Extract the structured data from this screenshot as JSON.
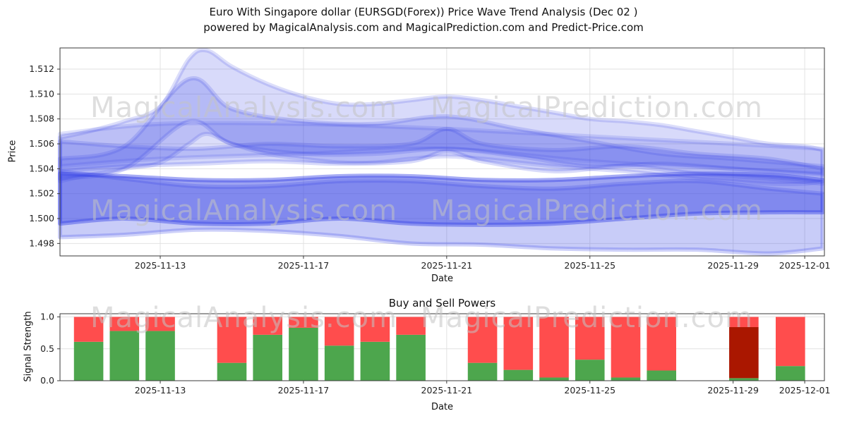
{
  "header": {
    "title_line1": "Euro With Singapore dollar (EURSGD(Forex)) Price Wave Trend Analysis (Dec 02 )",
    "title_line2": "powered by MagicalAnalysis.com and MagicalPrediction.com and Predict-Price.com"
  },
  "watermarks": {
    "left": "MagicalAnalysis.com",
    "right": "MagicalPrediction.com"
  },
  "colors": {
    "band": "#3b47e6",
    "green": "#4da64d",
    "red": "#ff4d4d",
    "darkred": "#aa1700",
    "grid": "#e2e2e2",
    "spine": "#3a3a3a",
    "tick_text": "#222222",
    "watermark": "#c4c4c4"
  },
  "chart_data": [
    {
      "type": "area",
      "title": "",
      "xlabel": "Date",
      "ylabel": "Price",
      "ylim": [
        1.497,
        1.5137
      ],
      "x_domain_days": [
        0.2,
        21.55
      ],
      "grid": true,
      "x_ticks": [
        {
          "day": 3,
          "label": "2025-11-13"
        },
        {
          "day": 7,
          "label": "2025-11-17"
        },
        {
          "day": 11,
          "label": "2025-11-21"
        },
        {
          "day": 15,
          "label": "2025-11-25"
        },
        {
          "day": 19,
          "label": "2025-11-29"
        },
        {
          "day": 21,
          "label": "2025-12-01"
        }
      ],
      "y_ticks": [
        {
          "value": 1.498,
          "label": "1.498"
        },
        {
          "value": 1.5,
          "label": "1.500"
        },
        {
          "value": 1.502,
          "label": "1.502"
        },
        {
          "value": 1.504,
          "label": "1.504"
        },
        {
          "value": 1.506,
          "label": "1.506"
        },
        {
          "value": 1.508,
          "label": "1.508"
        },
        {
          "value": 1.51,
          "label": "1.510"
        },
        {
          "value": 1.512,
          "label": "1.512"
        }
      ],
      "bands": [
        {
          "name": "peak-envelope",
          "opacity": 0.2,
          "x": [
            0.2,
            1,
            2,
            3,
            3.8,
            4.3,
            5,
            6,
            7,
            8,
            9,
            10,
            11,
            12,
            13,
            14,
            15,
            16,
            17,
            18,
            19,
            20,
            21,
            21.5
          ],
          "upper": [
            1.5065,
            1.507,
            1.5078,
            1.509,
            1.5128,
            1.5135,
            1.5122,
            1.5108,
            1.5098,
            1.5092,
            1.5092,
            1.5095,
            1.5098,
            1.5095,
            1.509,
            1.5085,
            1.508,
            1.5078,
            1.5075,
            1.507,
            1.5065,
            1.506,
            1.5058,
            1.5055
          ],
          "lower": [
            1.503,
            1.5035,
            1.504,
            1.5045,
            1.506,
            1.5068,
            1.506,
            1.5052,
            1.5048,
            1.5045,
            1.5045,
            1.5048,
            1.505,
            1.5048,
            1.5045,
            1.5042,
            1.504,
            1.5038,
            1.5035,
            1.5032,
            1.503,
            1.5028,
            1.5028,
            1.503
          ]
        },
        {
          "name": "secondary-peak",
          "opacity": 0.22,
          "x": [
            0.2,
            2,
            3.8,
            5,
            7,
            9,
            11,
            13,
            15,
            17,
            19,
            21.5
          ],
          "upper": [
            1.5048,
            1.5058,
            1.5112,
            1.5088,
            1.5078,
            1.5076,
            1.5082,
            1.5072,
            1.5062,
            1.5052,
            1.5048,
            1.5042
          ],
          "lower": [
            1.5032,
            1.504,
            1.5078,
            1.506,
            1.5052,
            1.5052,
            1.5056,
            1.505,
            1.5042,
            1.5044,
            1.504,
            1.5035
          ]
        },
        {
          "name": "mid-band",
          "opacity": 0.22,
          "x": [
            0.2,
            2,
            4,
            6,
            8,
            10,
            11,
            12,
            14,
            16,
            18,
            20,
            21.5
          ],
          "upper": [
            1.5062,
            1.5058,
            1.5056,
            1.506,
            1.5058,
            1.506,
            1.5072,
            1.506,
            1.5055,
            1.5058,
            1.5052,
            1.5048,
            1.504
          ],
          "lower": [
            1.5038,
            1.5042,
            1.5044,
            1.5046,
            1.5044,
            1.5046,
            1.5054,
            1.5046,
            1.5038,
            1.5042,
            1.5036,
            1.5032,
            1.5028
          ]
        },
        {
          "name": "dense-core",
          "opacity": 0.5,
          "x": [
            0.2,
            2,
            4,
            6,
            8,
            10,
            12,
            14,
            16,
            18,
            20,
            21.5
          ],
          "upper": [
            1.5036,
            1.5034,
            1.5031,
            1.5031,
            1.5034,
            1.5034,
            1.5031,
            1.5031,
            1.5034,
            1.5036,
            1.5035,
            1.5031
          ],
          "lower": [
            1.4996,
            1.5,
            1.4996,
            1.4996,
            1.5,
            1.4996,
            1.4995,
            1.4996,
            1.5,
            1.5004,
            1.5005,
            1.5005
          ]
        },
        {
          "name": "lower-envelope",
          "opacity": 0.28,
          "x": [
            0.2,
            2,
            4,
            6,
            8,
            10,
            12,
            14,
            16,
            18,
            20,
            21.5
          ],
          "upper": [
            1.5038,
            1.5032,
            1.5026,
            1.5026,
            1.503,
            1.503,
            1.5026,
            1.5024,
            1.5028,
            1.503,
            1.5024,
            1.502
          ],
          "lower": [
            1.4985,
            1.4987,
            1.4991,
            1.499,
            1.4986,
            1.498,
            1.4979,
            1.4976,
            1.4975,
            1.4975,
            1.4972,
            1.4976
          ]
        },
        {
          "name": "upper-mid-thin",
          "opacity": 0.18,
          "x": [
            0.2,
            3,
            7,
            11,
            15,
            19,
            21.5
          ],
          "upper": [
            1.5068,
            1.5076,
            1.5076,
            1.5072,
            1.5066,
            1.506,
            1.5056
          ],
          "lower": [
            1.5042,
            1.5048,
            1.5052,
            1.5056,
            1.5046,
            1.504,
            1.5036
          ]
        }
      ]
    },
    {
      "type": "bar",
      "title": "Buy and Sell Powers",
      "xlabel": "Date",
      "ylabel": "Signal Strength",
      "ylim": [
        0,
        1.05
      ],
      "x_domain_days": [
        0.2,
        21.55
      ],
      "grid": true,
      "bar_width_days": 0.82,
      "x_ticks": [
        {
          "day": 3,
          "label": "2025-11-13"
        },
        {
          "day": 7,
          "label": "2025-11-17"
        },
        {
          "day": 11,
          "label": "2025-11-21"
        },
        {
          "day": 15,
          "label": "2025-11-25"
        },
        {
          "day": 19,
          "label": "2025-11-29"
        },
        {
          "day": 21,
          "label": "2025-12-01"
        }
      ],
      "y_ticks": [
        {
          "value": 0.0,
          "label": "0.0"
        },
        {
          "value": 0.5,
          "label": "0.5"
        },
        {
          "value": 1.0,
          "label": "1.0"
        }
      ],
      "bars": [
        {
          "day": 1,
          "segments": [
            [
              0.61,
              "green"
            ],
            [
              0.39,
              "red"
            ]
          ]
        },
        {
          "day": 2,
          "segments": [
            [
              0.78,
              "green"
            ],
            [
              0.22,
              "red"
            ]
          ]
        },
        {
          "day": 3,
          "segments": [
            [
              0.78,
              "green"
            ],
            [
              0.22,
              "red"
            ]
          ]
        },
        {
          "day": 5,
          "segments": [
            [
              0.28,
              "green"
            ],
            [
              0.72,
              "red"
            ]
          ]
        },
        {
          "day": 6,
          "segments": [
            [
              0.72,
              "green"
            ],
            [
              0.28,
              "red"
            ]
          ]
        },
        {
          "day": 7,
          "segments": [
            [
              0.83,
              "green"
            ],
            [
              0.17,
              "red"
            ]
          ]
        },
        {
          "day": 8,
          "segments": [
            [
              0.55,
              "green"
            ],
            [
              0.45,
              "red"
            ]
          ]
        },
        {
          "day": 9,
          "segments": [
            [
              0.61,
              "green"
            ],
            [
              0.39,
              "red"
            ]
          ]
        },
        {
          "day": 10,
          "segments": [
            [
              0.72,
              "green"
            ],
            [
              0.28,
              "red"
            ]
          ]
        },
        {
          "day": 12,
          "segments": [
            [
              0.28,
              "green"
            ],
            [
              0.72,
              "red"
            ]
          ]
        },
        {
          "day": 13,
          "segments": [
            [
              0.17,
              "green"
            ],
            [
              0.83,
              "red"
            ]
          ]
        },
        {
          "day": 14,
          "segments": [
            [
              0.05,
              "green"
            ],
            [
              0.95,
              "red"
            ]
          ]
        },
        {
          "day": 15,
          "segments": [
            [
              0.33,
              "green"
            ],
            [
              0.67,
              "red"
            ]
          ]
        },
        {
          "day": 16,
          "segments": [
            [
              0.05,
              "green"
            ],
            [
              0.95,
              "red"
            ]
          ]
        },
        {
          "day": 17,
          "segments": [
            [
              0.16,
              "green"
            ],
            [
              0.84,
              "red"
            ]
          ]
        },
        {
          "day": 19.3,
          "segments": [
            [
              0.04,
              "green"
            ],
            [
              0.8,
              "darkred"
            ],
            [
              0.16,
              "red"
            ]
          ]
        },
        {
          "day": 20.6,
          "segments": [
            [
              0.23,
              "green"
            ],
            [
              0.77,
              "red"
            ]
          ]
        }
      ]
    }
  ]
}
